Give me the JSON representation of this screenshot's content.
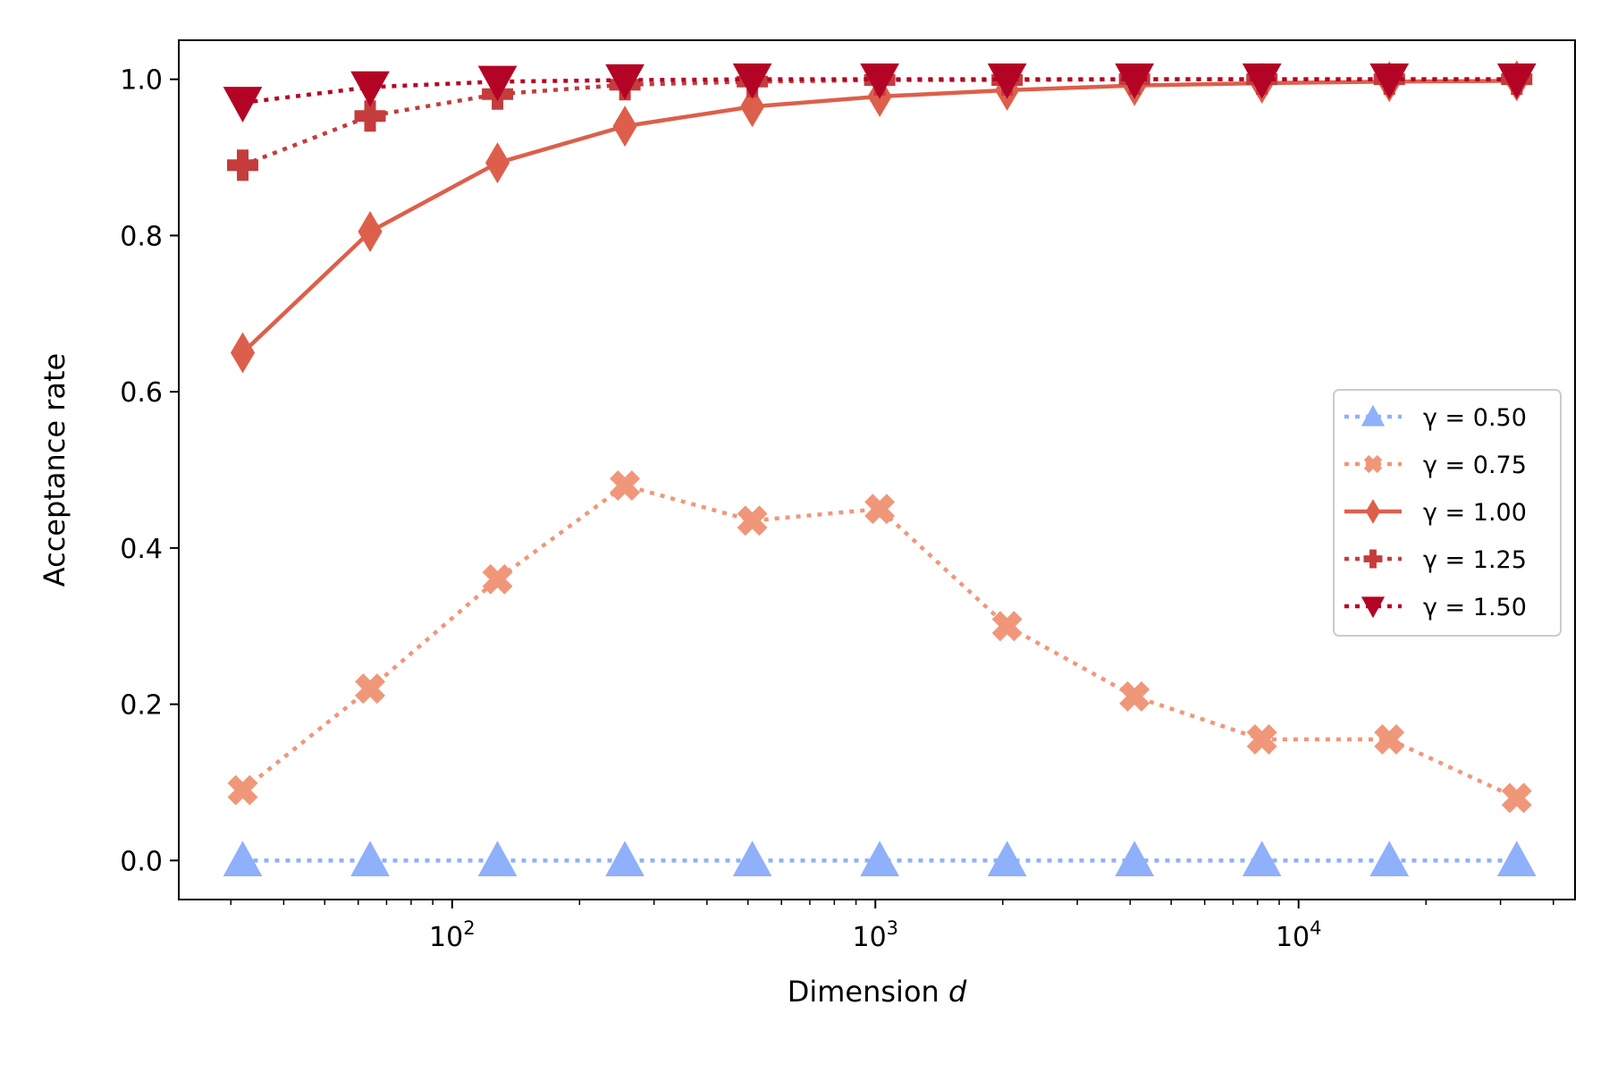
{
  "chart_data": {
    "type": "line",
    "title": "",
    "xlabel_text": "Dimension",
    "xlabel_symbol": "d",
    "ylabel": "Acceptance rate",
    "xscale": "log",
    "xlim": [
      22.6,
      45000
    ],
    "ylim": [
      -0.05,
      1.05
    ],
    "x_tick_labels": [
      {
        "value": 100,
        "base": "10",
        "exp": "2"
      },
      {
        "value": 1000,
        "base": "10",
        "exp": "3"
      },
      {
        "value": 10000,
        "base": "10",
        "exp": "4"
      }
    ],
    "y_ticks": [
      0.0,
      0.2,
      0.4,
      0.6,
      0.8,
      1.0
    ],
    "y_tick_labels": [
      "0.0",
      "0.2",
      "0.4",
      "0.6",
      "0.8",
      "1.0"
    ],
    "grid": false,
    "legend_position": "center-right",
    "x": [
      32,
      64,
      128,
      256,
      512,
      1024,
      2048,
      4096,
      8192,
      16384,
      32768
    ],
    "series": [
      {
        "name": "γ = 0.50",
        "color": "#8fb0fa",
        "linestyle": "dotted",
        "marker": "triangle-up",
        "values": [
          0.0,
          0.0,
          0.0,
          0.0,
          0.0,
          0.0,
          0.0,
          0.0,
          0.0,
          0.0,
          0.0
        ]
      },
      {
        "name": "γ = 0.75",
        "color": "#f0977a",
        "linestyle": "dotted",
        "marker": "x-filled",
        "values": [
          0.09,
          0.22,
          0.36,
          0.48,
          0.435,
          0.45,
          0.3,
          0.21,
          0.155,
          0.155,
          0.08
        ]
      },
      {
        "name": "γ = 1.00",
        "color": "#dd5f4b",
        "linestyle": "solid",
        "marker": "thin-diamond",
        "values": [
          0.65,
          0.805,
          0.893,
          0.94,
          0.965,
          0.978,
          0.986,
          0.992,
          0.995,
          0.997,
          0.998
        ]
      },
      {
        "name": "γ = 1.25",
        "color": "#c43c3c",
        "linestyle": "dotted",
        "marker": "plus-filled",
        "values": [
          0.89,
          0.953,
          0.981,
          0.993,
          0.997,
          0.999,
          0.999,
          1.0,
          1.0,
          1.0,
          1.0
        ]
      },
      {
        "name": "γ = 1.50",
        "color": "#b40426",
        "linestyle": "dotted",
        "marker": "triangle-down",
        "values": [
          0.97,
          0.99,
          0.997,
          0.999,
          1.0,
          1.0,
          1.0,
          1.0,
          1.0,
          1.0,
          1.0
        ]
      }
    ]
  }
}
